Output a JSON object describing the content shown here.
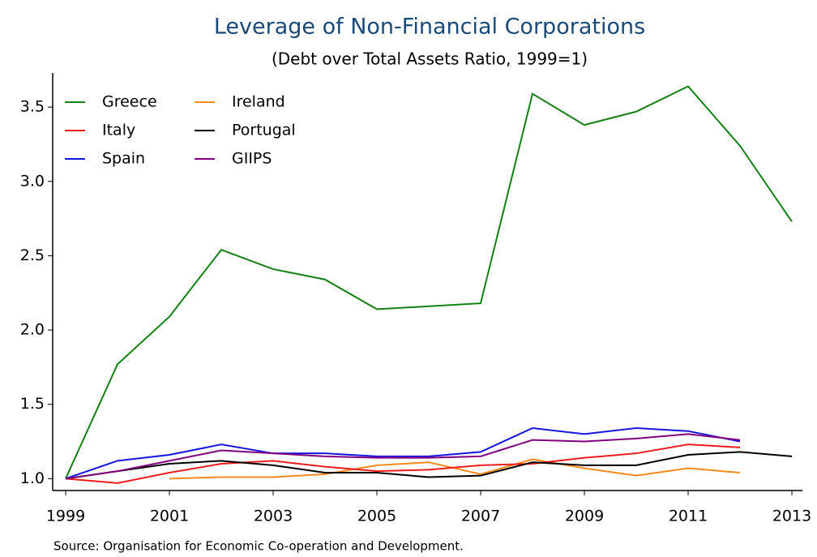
{
  "chart_data": {
    "type": "line",
    "title": "Leverage of Non-Financial Corporations",
    "subtitle": "(Debt over Total Assets Ratio, 1999=1)",
    "source": "Source: Organisation for Economic Co-operation and Development.",
    "x": [
      1999,
      2000,
      2001,
      2002,
      2003,
      2004,
      2005,
      2006,
      2007,
      2008,
      2009,
      2010,
      2011,
      2012,
      2013
    ],
    "xlim": [
      1999,
      2013
    ],
    "xticks": [
      1999,
      2001,
      2003,
      2005,
      2007,
      2009,
      2011,
      2013
    ],
    "ylim": [
      0.92,
      3.73
    ],
    "yticks": [
      {
        "value": 1,
        "label": "1.0"
      },
      1.5,
      {
        "value": 2,
        "label": "2.0"
      },
      2.5,
      {
        "value": 3,
        "label": "3.0"
      },
      3.5
    ],
    "legend": "top-left",
    "series": [
      {
        "name": "Greece",
        "color": "#138013",
        "values": [
          1.0,
          1.77,
          2.09,
          2.54,
          2.41,
          2.34,
          2.14,
          2.16,
          2.18,
          3.59,
          3.38,
          3.47,
          3.64,
          3.24,
          2.73
        ]
      },
      {
        "name": "Ireland",
        "color": "#f58a1f",
        "values": [
          null,
          null,
          1.0,
          1.01,
          1.01,
          1.03,
          1.09,
          1.11,
          1.03,
          1.13,
          1.07,
          1.02,
          1.07,
          1.04,
          null
        ]
      },
      {
        "name": "Italy",
        "color": "#ee1c1c",
        "values": [
          1.0,
          0.97,
          1.04,
          1.1,
          1.12,
          1.08,
          1.05,
          1.06,
          1.09,
          1.1,
          1.14,
          1.17,
          1.23,
          1.21,
          null
        ]
      },
      {
        "name": "Portugal",
        "color": "#000000",
        "values": [
          1.0,
          1.05,
          1.1,
          1.12,
          1.09,
          1.04,
          1.04,
          1.01,
          1.02,
          1.11,
          1.09,
          1.09,
          1.16,
          1.18,
          1.15
        ]
      },
      {
        "name": "Spain",
        "color": "#1515e0",
        "values": [
          1.0,
          1.12,
          1.16,
          1.23,
          1.17,
          1.17,
          1.15,
          1.15,
          1.18,
          1.34,
          1.3,
          1.34,
          1.32,
          1.25,
          null
        ]
      },
      {
        "name": "GIIPS",
        "color": "#800080",
        "values": [
          1.0,
          1.05,
          1.12,
          1.19,
          1.17,
          1.15,
          1.14,
          1.14,
          1.15,
          1.26,
          1.25,
          1.27,
          1.3,
          1.26,
          null
        ]
      }
    ]
  }
}
